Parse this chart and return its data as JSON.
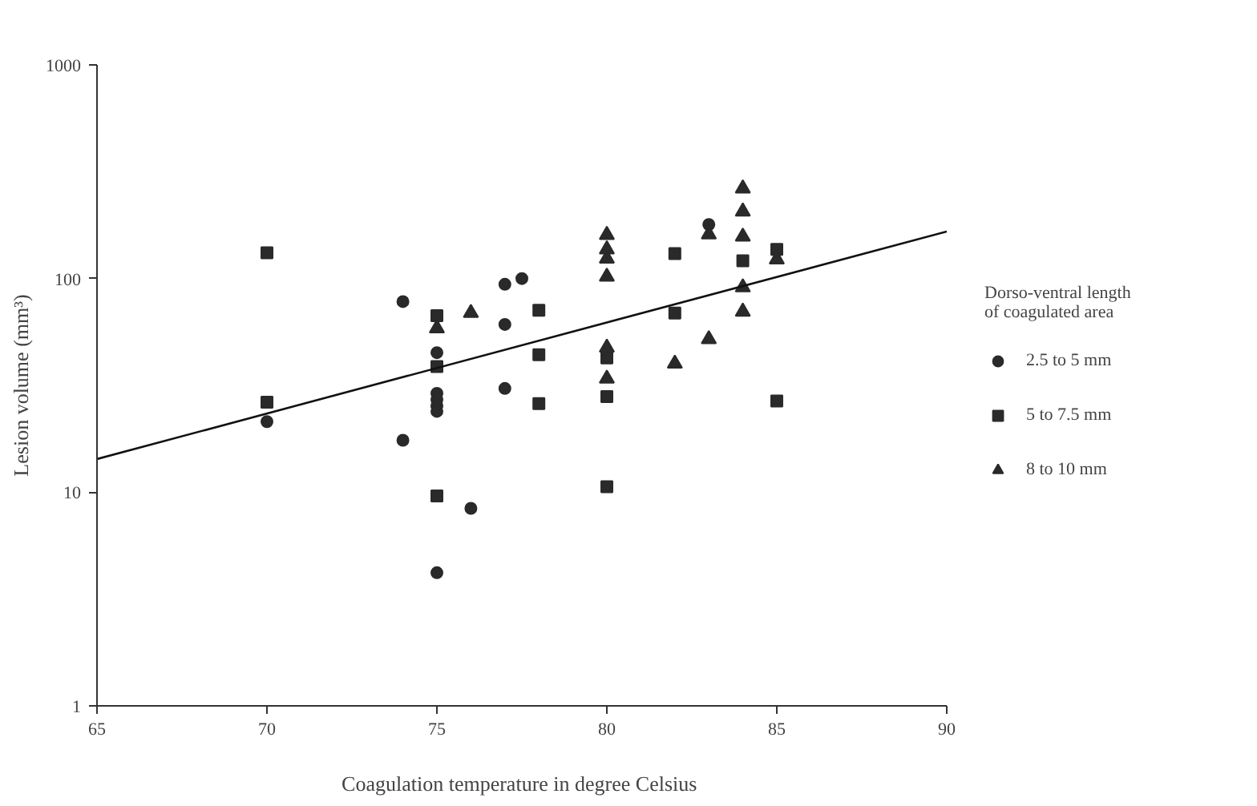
{
  "chart_data": {
    "type": "scatter",
    "xlabel": "Coagulation  temperature in degree Celsius",
    "ylabel": "Lesion volume (mm³)",
    "legend_title": "Dorso-ventral length of coagulated area",
    "xlim": [
      65,
      90
    ],
    "xticks": [
      65,
      70,
      75,
      80,
      85,
      90
    ],
    "ylim": [
      1,
      1000
    ],
    "yticks": [
      1,
      10,
      100,
      1000
    ],
    "log": "y",
    "grid": false,
    "legend": "right",
    "series": [
      {
        "name": "2.5 to 5 mm",
        "color": "#2a2a2a",
        "marker": "circle",
        "x": [
          70,
          74,
          74,
          75,
          75,
          75,
          75,
          75,
          75,
          76,
          77,
          77,
          77,
          77.5,
          83
        ],
        "values": [
          21.4,
          78,
          17.5,
          45,
          29,
          27.1,
          25.4,
          23.9,
          4.2,
          8.4,
          94,
          61,
          30.6,
          100,
          179
        ]
      },
      {
        "name": "5 to 7.5 mm",
        "color": "#2a2a2a",
        "marker": "square",
        "x": [
          70,
          70,
          75,
          75,
          75,
          78,
          78,
          78,
          80,
          80,
          80,
          82,
          82,
          84,
          85,
          85
        ],
        "values": [
          132,
          26.4,
          67,
          38.7,
          9.6,
          71,
          44,
          26,
          42.5,
          28,
          10.6,
          131,
          69,
          121,
          137,
          26.7
        ]
      },
      {
        "name": "8 to 10 mm",
        "color": "#2a2a2a",
        "marker": "triangle",
        "x": [
          75,
          76,
          80,
          80,
          80,
          80,
          80,
          80,
          82,
          83,
          83,
          84,
          84,
          84,
          84,
          84,
          85
        ],
        "values": [
          58.5,
          69,
          160,
          137,
          124,
          102,
          47.5,
          34,
          40,
          161,
          52,
          264,
          206,
          157,
          91,
          70,
          123
        ]
      },
      {
        "type": "line",
        "color": "#111111",
        "x": [
          65,
          90
        ],
        "values": [
          14.3,
          166
        ]
      }
    ]
  }
}
